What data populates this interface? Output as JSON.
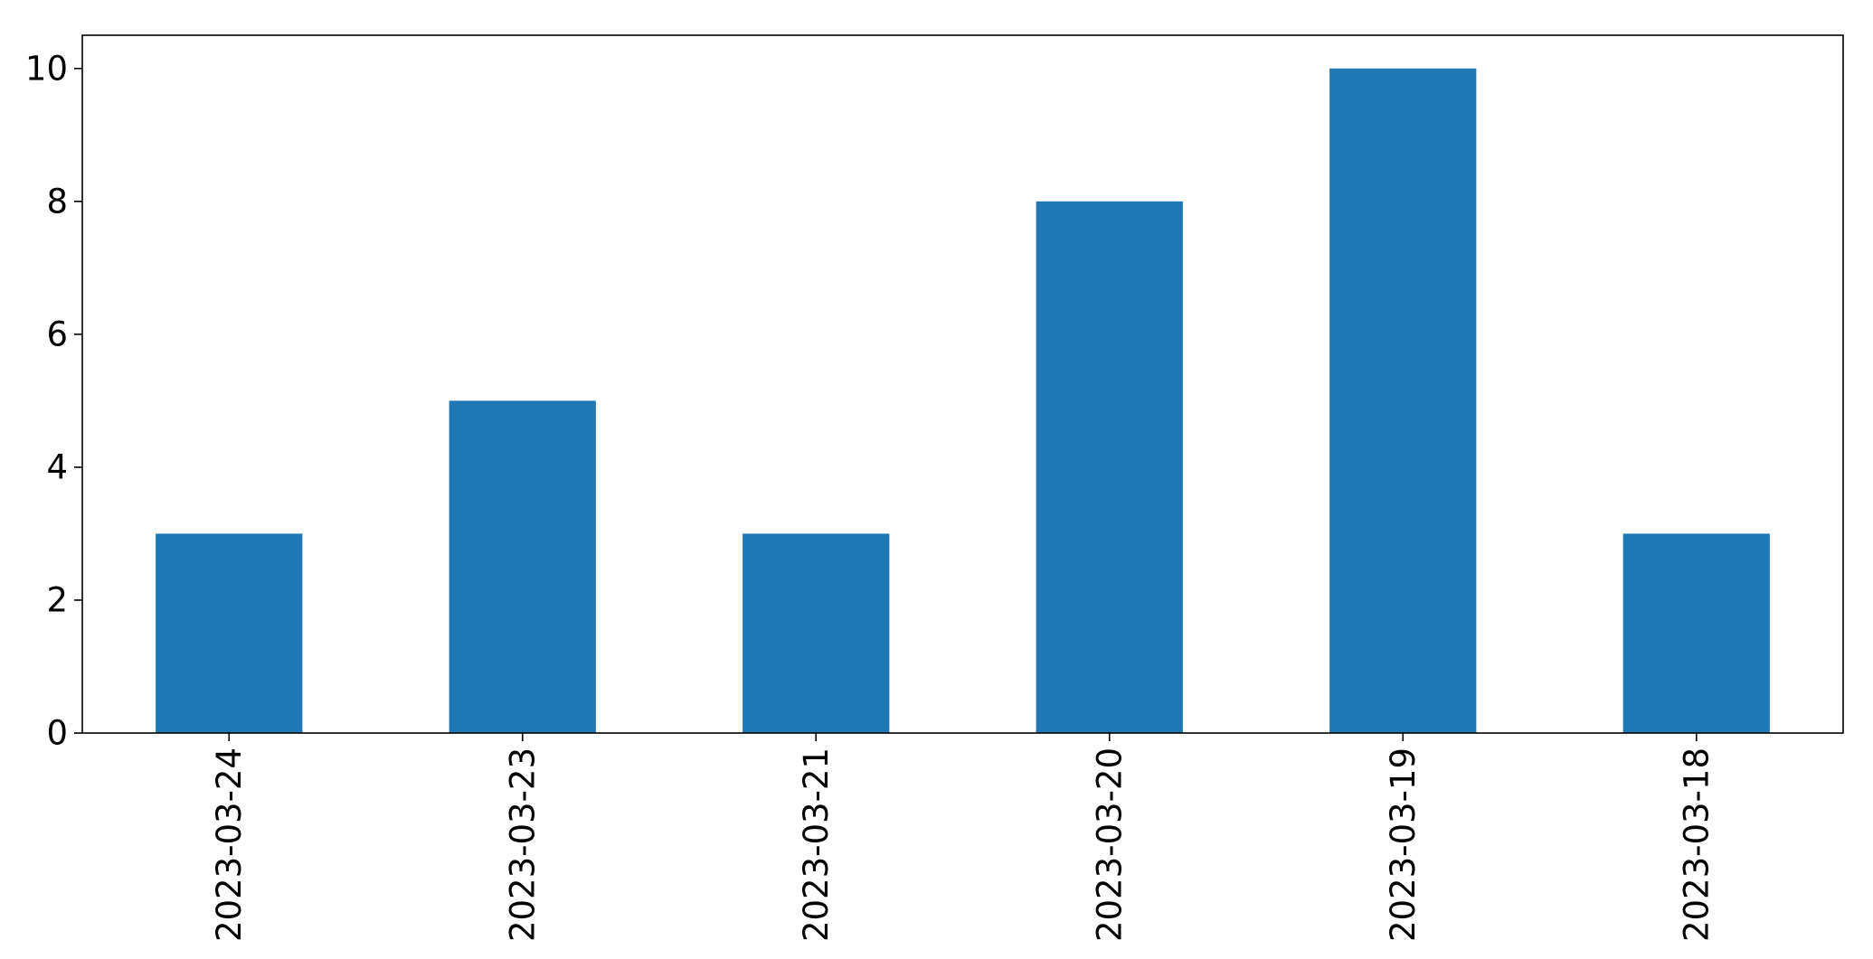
{
  "chart_data": {
    "type": "bar",
    "title": "",
    "xlabel": "",
    "ylabel": "",
    "categories": [
      "2023-03-24",
      "2023-03-23",
      "2023-03-21",
      "2023-03-20",
      "2023-03-19",
      "2023-03-18"
    ],
    "values": [
      3,
      5,
      3,
      8,
      10,
      3
    ],
    "ylim": [
      0,
      10.5
    ],
    "yticks": [
      0,
      2,
      4,
      6,
      8,
      10
    ],
    "grid": false,
    "legend": "none",
    "bar_color": "#1f77b4",
    "x_tick_rotation": "vertical"
  }
}
